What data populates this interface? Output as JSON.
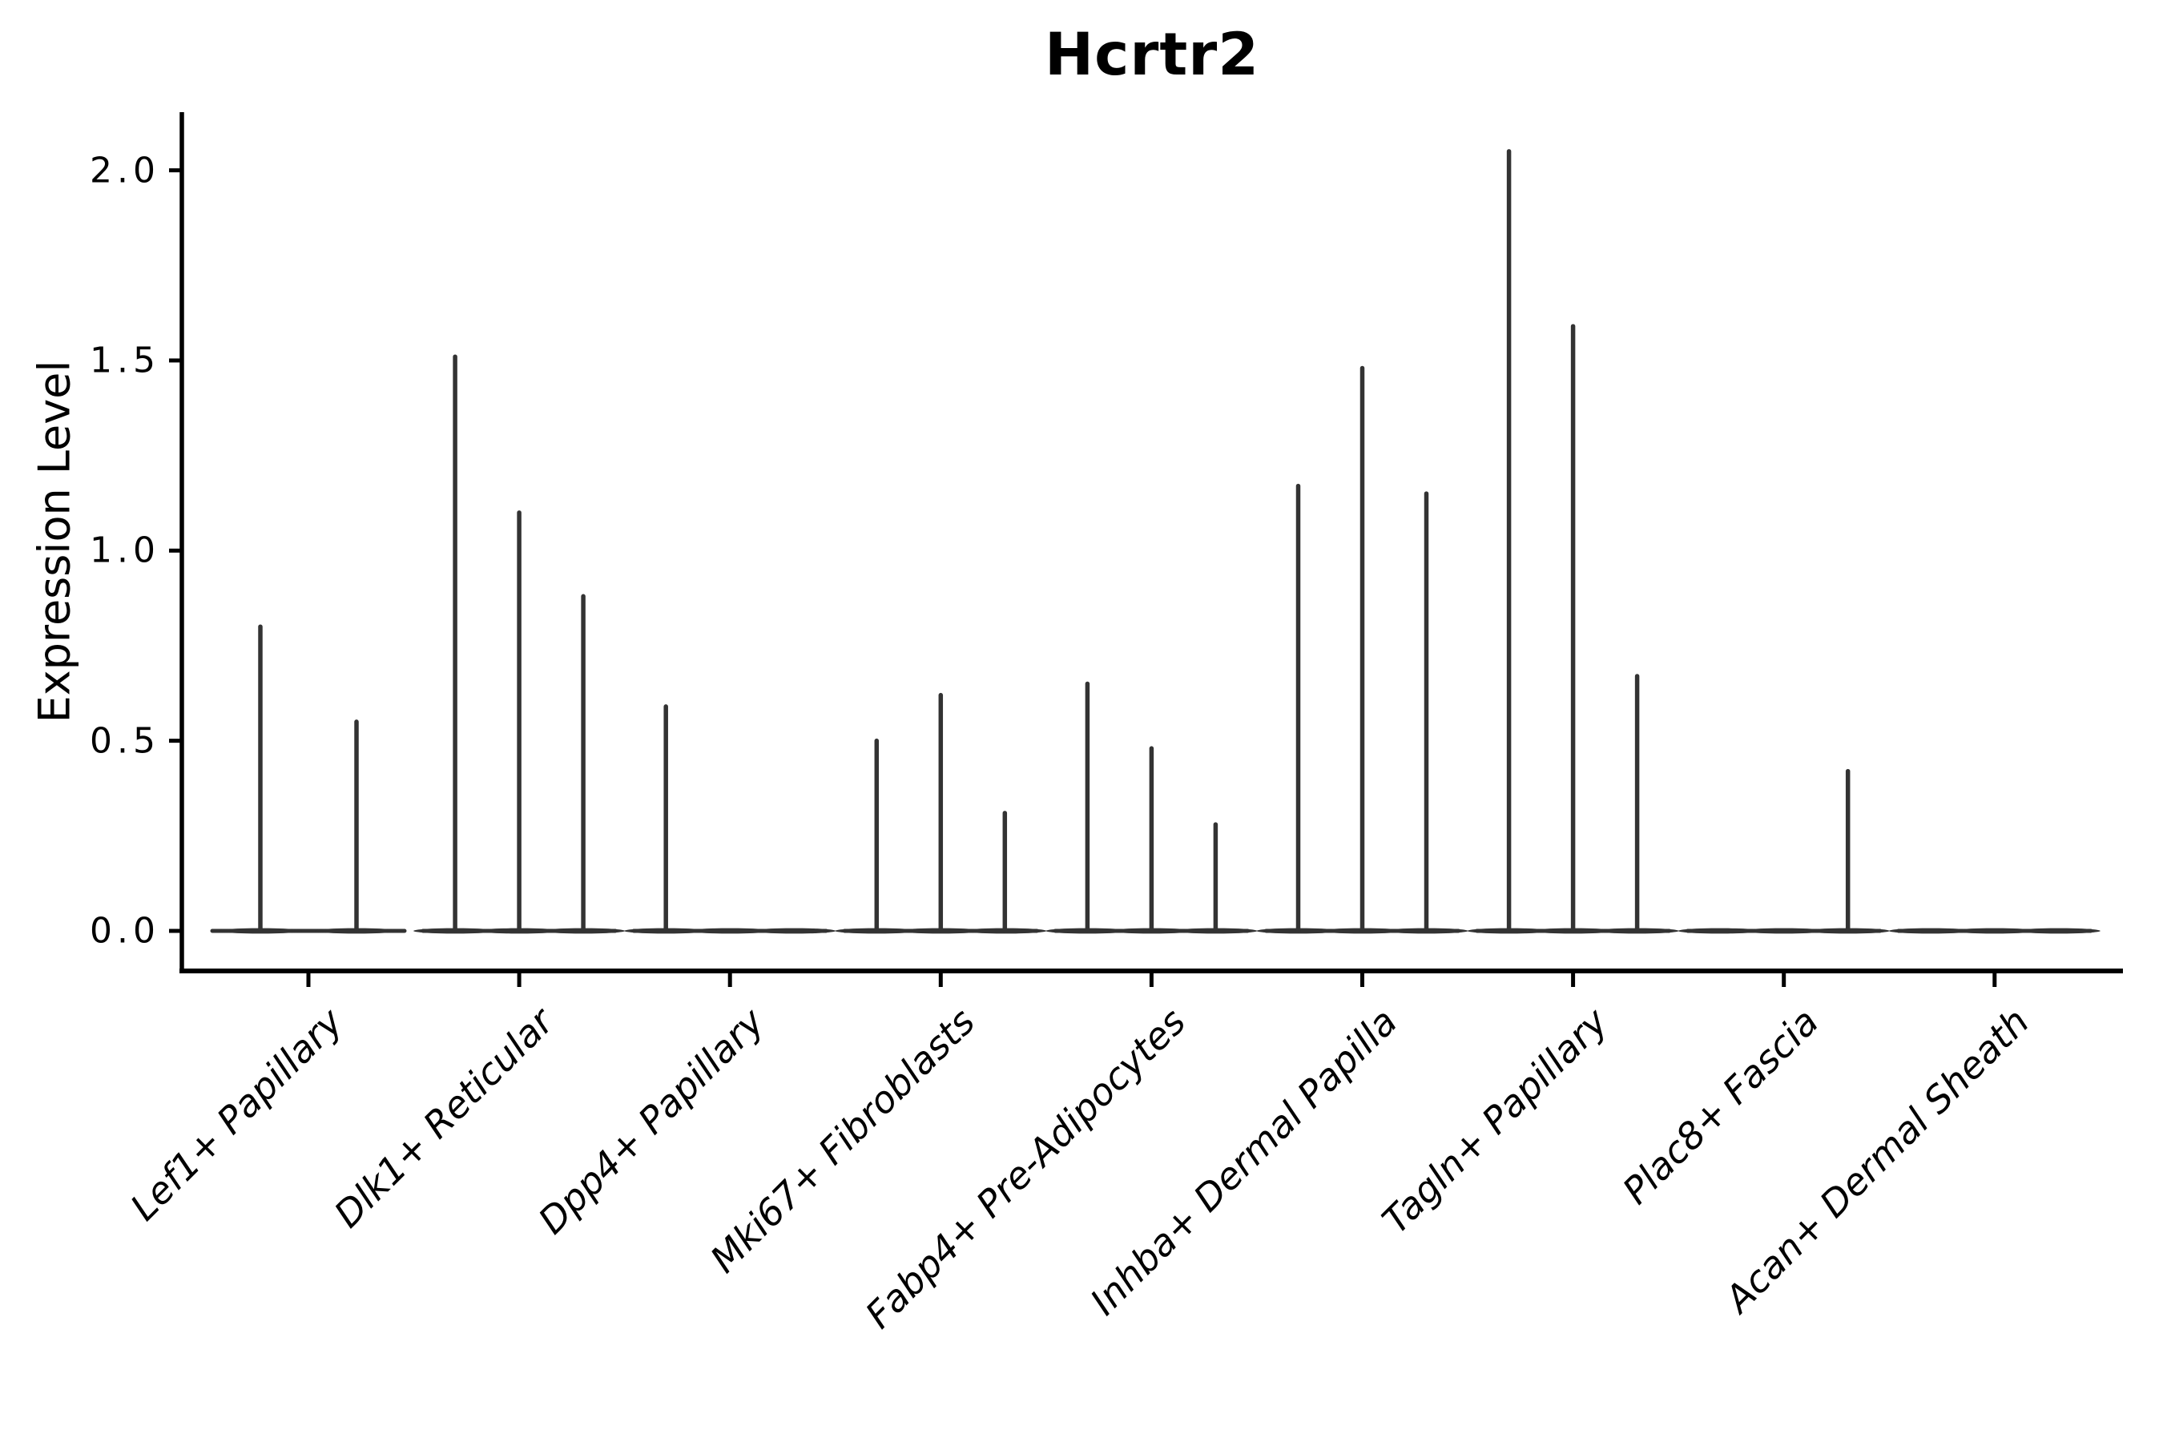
{
  "figure": {
    "title": "Hcrtr2",
    "ylabel": "Expression Level"
  },
  "chart_data": {
    "type": "violin",
    "title": "Hcrtr2",
    "xlabel": "",
    "ylabel": "Expression Level",
    "ylim": [
      -0.1,
      2.15
    ],
    "grid": false,
    "legend": "none",
    "ytick_labels": [
      "0.0",
      "0.5",
      "1.0",
      "1.5",
      "2.0"
    ],
    "ytick_values": [
      0.0,
      0.5,
      1.0,
      1.5,
      2.0
    ],
    "description": "Thin spike-like violins; wide flat base at 0 expression, spike height = max expression per sub-violin. Zero value means flat violin (no spike).",
    "categories": [
      {
        "label": "Lef1+ Papillary",
        "violin_max_values": [
          0.8,
          0.55
        ]
      },
      {
        "label": "Dlk1+ Reticular",
        "violin_max_values": [
          1.51,
          1.1,
          0.88
        ]
      },
      {
        "label": "Dpp4+ Papillary",
        "violin_max_values": [
          0.59,
          0,
          0
        ]
      },
      {
        "label": "Mki67+ Fibroblasts",
        "violin_max_values": [
          0.5,
          0.62,
          0.31
        ]
      },
      {
        "label": "Fabp4+ Pre-Adipocytes",
        "violin_max_values": [
          0.65,
          0.48,
          0.28
        ]
      },
      {
        "label": "Inhba+ Dermal Papilla",
        "violin_max_values": [
          1.17,
          1.48,
          1.15
        ]
      },
      {
        "label": "Tagln+ Papillary",
        "violin_max_values": [
          2.05,
          1.59,
          0.67
        ]
      },
      {
        "label": "Plac8+ Fascia",
        "violin_max_values": [
          0,
          0,
          0.42
        ]
      },
      {
        "label": "Acan+ Dermal Sheath",
        "violin_max_values": [
          0,
          0,
          0
        ]
      }
    ],
    "colors": {
      "violin": "#333333",
      "axis": "#000000",
      "text": "#000000",
      "background": "#ffffff"
    }
  }
}
